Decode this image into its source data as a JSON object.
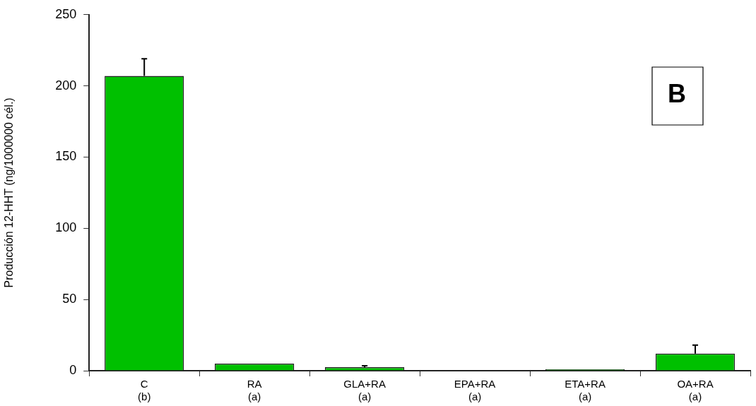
{
  "chart_data": {
    "type": "bar",
    "ylabel": "Producción 12-HHT (ng/1000000 cél.)",
    "categories": [
      "C\n(b)",
      "RA\n(a)",
      "GLA+RA\n(a)",
      "EPA+RA\n(a)",
      "ETA+RA\n(a)",
      "OA+RA\n(a)"
    ],
    "series": [
      {
        "color": "#00c000",
        "values": [
          207,
          5,
          2.5,
          0,
          1,
          12
        ],
        "errors": [
          [
            207,
            219
          ],
          null,
          [
            2.5,
            3.5
          ],
          null,
          null,
          [
            12,
            18
          ]
        ]
      }
    ],
    "ylim": [
      0,
      250
    ],
    "yticks": [
      0,
      50,
      100,
      150,
      200,
      250
    ],
    "grid": false,
    "legend": false,
    "annotations": [
      "B"
    ]
  }
}
